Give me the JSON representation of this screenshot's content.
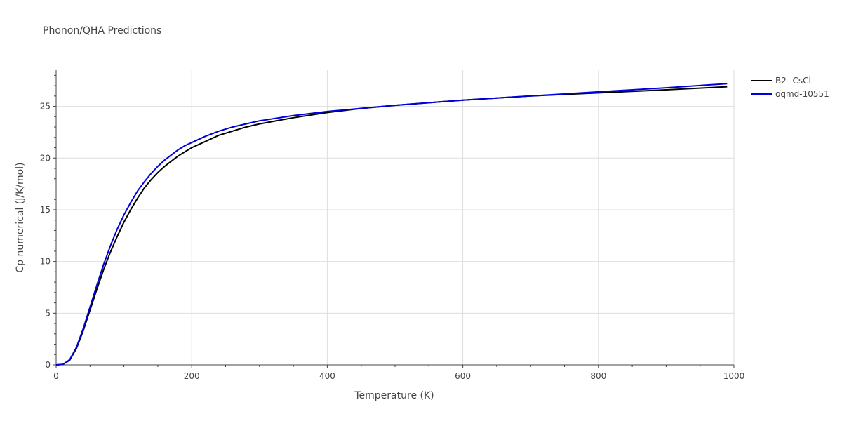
{
  "chart_data": {
    "type": "line",
    "title": "Phonon/QHA Predictions",
    "xlabel": "Temperature (K)",
    "ylabel": "Cp numerical (J/K/mol)",
    "xlim": [
      0,
      1000
    ],
    "ylim": [
      0,
      28.5
    ],
    "xticks": [
      0,
      200,
      400,
      600,
      800,
      1000
    ],
    "yticks": [
      0,
      5,
      10,
      15,
      20,
      25
    ],
    "grid": true,
    "legend_position": "top-right",
    "series": [
      {
        "name": "B2--CsCl",
        "color": "#000000",
        "x": [
          0,
          10,
          20,
          30,
          40,
          50,
          60,
          70,
          80,
          90,
          100,
          110,
          120,
          130,
          140,
          150,
          160,
          170,
          180,
          190,
          200,
          220,
          240,
          260,
          280,
          300,
          350,
          400,
          450,
          500,
          600,
          700,
          800,
          900,
          990
        ],
        "y": [
          0,
          0.05,
          0.45,
          1.6,
          3.3,
          5.3,
          7.3,
          9.2,
          10.9,
          12.4,
          13.8,
          15.0,
          16.1,
          17.1,
          17.9,
          18.6,
          19.2,
          19.7,
          20.2,
          20.6,
          21.0,
          21.6,
          22.2,
          22.6,
          23.0,
          23.3,
          23.9,
          24.4,
          24.8,
          25.1,
          25.6,
          26.0,
          26.3,
          26.6,
          26.9
        ]
      },
      {
        "name": "oqmd-10551",
        "color": "#0000dd",
        "x": [
          0,
          10,
          20,
          30,
          40,
          50,
          60,
          70,
          80,
          90,
          100,
          110,
          120,
          130,
          140,
          150,
          160,
          170,
          180,
          190,
          200,
          220,
          240,
          260,
          280,
          300,
          350,
          400,
          450,
          500,
          600,
          700,
          800,
          900,
          990
        ],
        "y": [
          0,
          0.05,
          0.5,
          1.7,
          3.5,
          5.6,
          7.7,
          9.7,
          11.5,
          13.1,
          14.5,
          15.7,
          16.8,
          17.7,
          18.5,
          19.2,
          19.8,
          20.3,
          20.8,
          21.2,
          21.5,
          22.1,
          22.6,
          23.0,
          23.3,
          23.6,
          24.1,
          24.5,
          24.8,
          25.1,
          25.6,
          26.0,
          26.4,
          26.8,
          27.2
        ]
      }
    ]
  }
}
